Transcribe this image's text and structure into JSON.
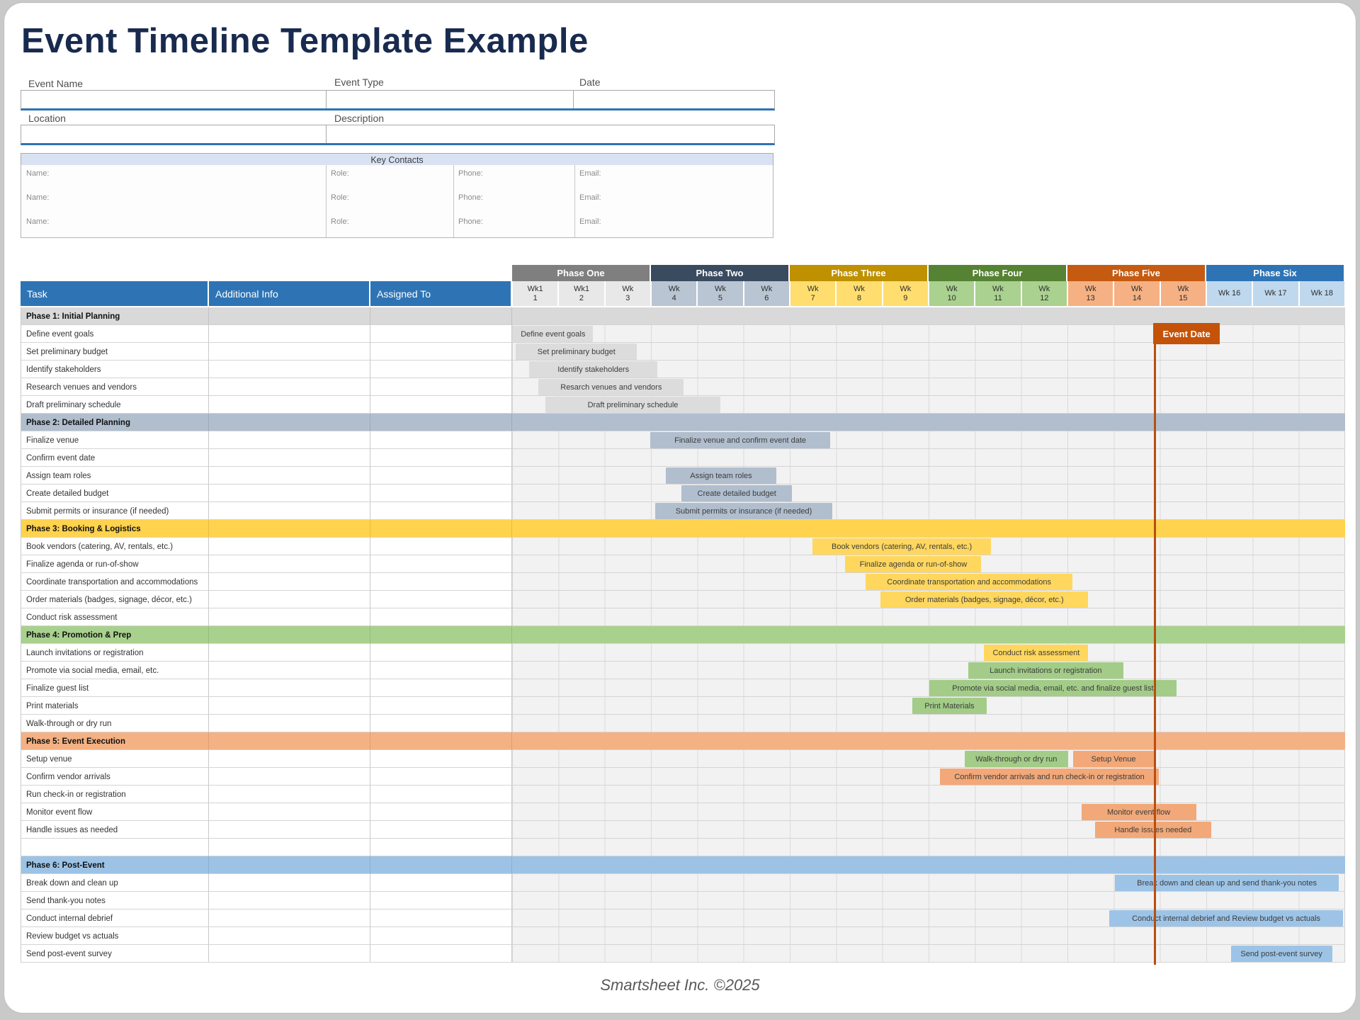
{
  "title": "Event Timeline Template Example",
  "footer": "Smartsheet Inc. ©2025",
  "form": {
    "fields": {
      "event_name": "Event Name",
      "event_type": "Event Type",
      "date": "Date",
      "location": "Location",
      "description": "Description"
    },
    "values": {
      "event_name": "",
      "event_type": "",
      "date": "",
      "location": "",
      "description": ""
    }
  },
  "contacts": {
    "header": "Key Contacts",
    "field_labels": [
      "Name:",
      "Role:",
      "Phone:",
      "Email:"
    ],
    "rows": [
      {
        "name": "",
        "role": "",
        "phone": "",
        "email": ""
      },
      {
        "name": "",
        "role": "",
        "phone": "",
        "email": ""
      },
      {
        "name": "",
        "role": "",
        "phone": "",
        "email": ""
      }
    ]
  },
  "table": {
    "columns": [
      "Task",
      "Additional Info",
      "Assigned To"
    ]
  },
  "colors": {
    "header_blue": "#2E74B5",
    "title_navy": "#182a4e",
    "event_date_orange": "#C45309",
    "event_line": "#B84E0F",
    "contacts_band": "#D9E2F3"
  },
  "gantt": {
    "phases": [
      {
        "name": "Phase One",
        "header": "#7F7F7F",
        "week_bg": "#E8E8E8",
        "band": "#D9D9D9",
        "bar": "#DCDCDC"
      },
      {
        "name": "Phase Two",
        "header": "#3B4B5F",
        "week_bg": "#B9C5D3",
        "band": "#B0BECE",
        "bar": "#B0BECE"
      },
      {
        "name": "Phase Three",
        "header": "#BF9000",
        "week_bg": "#FFDE6F",
        "band": "#FFD34D",
        "bar": "#FFD75E"
      },
      {
        "name": "Phase Four",
        "header": "#568234",
        "week_bg": "#AAD18F",
        "band": "#A9D18E",
        "bar": "#A2CC87"
      },
      {
        "name": "Phase Five",
        "header": "#C55A11",
        "week_bg": "#F5B183",
        "band": "#F4B183",
        "bar": "#F2A878"
      },
      {
        "name": "Phase Six",
        "header": "#2E74B5",
        "week_bg": "#BFD8EE",
        "band": "#9CC3E5",
        "bar": "#9DC4E7"
      }
    ],
    "weeks": [
      {
        "l1": "Wk1",
        "l2": "1",
        "phase": 0
      },
      {
        "l1": "Wk1",
        "l2": "2",
        "phase": 0
      },
      {
        "l1": "Wk",
        "l2": "3",
        "phase": 0
      },
      {
        "l1": "Wk",
        "l2": "4",
        "phase": 1
      },
      {
        "l1": "Wk",
        "l2": "5",
        "phase": 1
      },
      {
        "l1": "Wk",
        "l2": "6",
        "phase": 1
      },
      {
        "l1": "Wk",
        "l2": "7",
        "phase": 2
      },
      {
        "l1": "Wk",
        "l2": "8",
        "phase": 2
      },
      {
        "l1": "Wk",
        "l2": "9",
        "phase": 2
      },
      {
        "l1": "Wk",
        "l2": "10",
        "phase": 3
      },
      {
        "l1": "Wk",
        "l2": "11",
        "phase": 3
      },
      {
        "l1": "Wk",
        "l2": "12",
        "phase": 3
      },
      {
        "l1": "Wk",
        "l2": "13",
        "phase": 4
      },
      {
        "l1": "Wk",
        "l2": "14",
        "phase": 4
      },
      {
        "l1": "Wk",
        "l2": "15",
        "phase": 4
      },
      {
        "l1": "Wk 16",
        "l2": "",
        "phase": 5
      },
      {
        "l1": "Wk 17",
        "l2": "",
        "phase": 5
      },
      {
        "l1": "Wk 18",
        "l2": "",
        "phase": 5
      }
    ],
    "event_date": {
      "label": "Event Date",
      "week": 13.87
    },
    "rows": [
      {
        "t": "band",
        "p": 0,
        "label": "Phase 1: Initial Planning"
      },
      {
        "t": "task",
        "label": "Define event goals",
        "bars": [
          {
            "p": 0,
            "text": "Define event goals",
            "s": 0.02,
            "e": 1.75
          }
        ]
      },
      {
        "t": "task",
        "label": "Set preliminary budget",
        "bars": [
          {
            "p": 0,
            "text": "Set preliminary budget",
            "s": 0.08,
            "e": 2.7
          }
        ]
      },
      {
        "t": "task",
        "label": "Identify stakeholders",
        "bars": [
          {
            "p": 0,
            "text": "Identify stakeholders",
            "s": 0.37,
            "e": 3.14
          }
        ]
      },
      {
        "t": "task",
        "label": "Research venues and vendors",
        "bars": [
          {
            "p": 0,
            "text": "Resarch venues and vendors",
            "s": 0.57,
            "e": 3.71
          }
        ]
      },
      {
        "t": "task",
        "label": "Draft preliminary schedule",
        "bars": [
          {
            "p": 0,
            "text": "Draft preliminary schedule",
            "s": 0.72,
            "e": 4.5
          }
        ]
      },
      {
        "t": "band",
        "p": 1,
        "label": "Phase 2: Detailed Planning"
      },
      {
        "t": "task",
        "label": "Finalize venue",
        "bars": [
          {
            "p": 1,
            "text": "Finalize venue and confirm event date",
            "s": 2.99,
            "e": 6.87
          }
        ]
      },
      {
        "t": "task",
        "label": "Confirm event date",
        "bars": []
      },
      {
        "t": "task",
        "label": "Assign team roles",
        "bars": [
          {
            "p": 1,
            "text": "Assign team roles",
            "s": 3.32,
            "e": 5.71
          }
        ]
      },
      {
        "t": "task",
        "label": "Create detailed budget",
        "bars": [
          {
            "p": 1,
            "text": "Create detailed budget",
            "s": 3.66,
            "e": 6.05
          }
        ]
      },
      {
        "t": "task",
        "label": "Submit permits or insurance (if needed)",
        "bars": [
          {
            "p": 1,
            "text": "Submit permits or insurance (if needed)",
            "s": 3.09,
            "e": 6.92
          }
        ]
      },
      {
        "t": "band",
        "p": 2,
        "label": "Phase 3: Booking & Logistics"
      },
      {
        "t": "task",
        "label": "Book vendors (catering, AV, rentals, etc.)",
        "bars": [
          {
            "p": 2,
            "text": "Book vendors (catering, AV, rentals, etc.)",
            "s": 6.49,
            "e": 10.35
          }
        ]
      },
      {
        "t": "task",
        "label": "Finalize agenda or run-of-show",
        "bars": [
          {
            "p": 2,
            "text": "Finalize agenda or run-of-show",
            "s": 7.2,
            "e": 10.14
          }
        ]
      },
      {
        "t": "task",
        "label": "Coordinate transportation and accommodations",
        "bars": [
          {
            "p": 2,
            "text": "Coordinate transportation and accommodations",
            "s": 7.64,
            "e": 12.11
          }
        ]
      },
      {
        "t": "task",
        "label": "Order materials (badges, signage, décor, etc.)",
        "bars": [
          {
            "p": 2,
            "text": "Order materials (badges, signage, décor, etc.)",
            "s": 7.96,
            "e": 12.45
          }
        ]
      },
      {
        "t": "task",
        "label": "Conduct risk assessment",
        "bars": []
      },
      {
        "t": "band",
        "p": 3,
        "label": "Phase 4: Promotion & Prep"
      },
      {
        "t": "task",
        "label": "Launch invitations or registration",
        "bars": [
          {
            "p": 2,
            "text": "Conduct risk assessment",
            "s": 10.2,
            "e": 12.45
          }
        ]
      },
      {
        "t": "task",
        "label": "Promote via social media, email, etc.",
        "bars": [
          {
            "p": 3,
            "text": "Launch invitations or registration",
            "s": 9.85,
            "e": 13.21
          }
        ]
      },
      {
        "t": "task",
        "label": "Finalize guest list",
        "bars": [
          {
            "p": 3,
            "text": "Promote via social media, email, etc. and finalize guest list",
            "s": 9.02,
            "e": 14.35
          }
        ]
      },
      {
        "t": "task",
        "label": "Print materials",
        "bars": [
          {
            "p": 3,
            "text": "Print Materials",
            "s": 8.65,
            "e": 10.25
          }
        ]
      },
      {
        "t": "task",
        "label": "Walk-through or dry run",
        "bars": []
      },
      {
        "t": "band",
        "p": 4,
        "label": "Phase 5: Event Execution"
      },
      {
        "t": "task",
        "label": "Setup venue",
        "bars": [
          {
            "p": 3,
            "text": "Walk-through or dry run",
            "s": 9.78,
            "e": 12.01
          },
          {
            "p": 4,
            "text": "Setup Venue",
            "s": 12.13,
            "e": 13.86
          }
        ]
      },
      {
        "t": "task",
        "label": "Confirm vendor arrivals",
        "bars": [
          {
            "p": 4,
            "text": "Confirm vendor arrivals and run check-in or registration",
            "s": 9.25,
            "e": 13.97
          }
        ]
      },
      {
        "t": "task",
        "label": "Run check-in or registration",
        "bars": []
      },
      {
        "t": "task",
        "label": "Monitor event flow",
        "bars": [
          {
            "p": 4,
            "text": "Monitor event flow",
            "s": 12.3,
            "e": 14.78
          }
        ]
      },
      {
        "t": "task",
        "label": "Handle issues as needed",
        "bars": [
          {
            "p": 4,
            "text": "Handle issues needed",
            "s": 12.6,
            "e": 15.1
          }
        ]
      },
      {
        "t": "task",
        "label": "",
        "bars": []
      },
      {
        "t": "band",
        "p": 5,
        "label": "Phase 6: Post-Event"
      },
      {
        "t": "task",
        "label": "Break down and clean up",
        "bars": [
          {
            "p": 5,
            "text": "Break down and clean up and send thank-you notes",
            "s": 13.02,
            "e": 17.87
          }
        ]
      },
      {
        "t": "task",
        "label": "Send thank-you notes",
        "bars": []
      },
      {
        "t": "task",
        "label": "Conduct internal debrief",
        "bars": [
          {
            "p": 5,
            "text": "Conduct internal debrief and Review budget vs actuals",
            "s": 12.91,
            "e": 17.95
          }
        ]
      },
      {
        "t": "task",
        "label": "Review budget vs actuals",
        "bars": []
      },
      {
        "t": "task",
        "label": "Send post-event survey",
        "bars": [
          {
            "p": 5,
            "text": "Send post-event survey",
            "s": 15.53,
            "e": 17.72
          }
        ]
      }
    ]
  }
}
